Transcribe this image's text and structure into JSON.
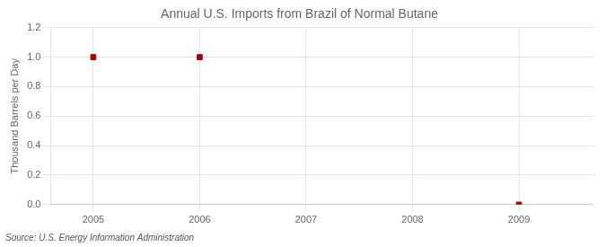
{
  "chart_data": {
    "type": "scatter",
    "title": "Annual U.S. Imports from Brazil of Normal Butane",
    "ylabel": "Thousand Barrels per Day",
    "source": "Source: U.S. Energy Information Administration",
    "x": [
      2005,
      2006,
      2009
    ],
    "values": [
      1.0,
      1.0,
      0.0
    ],
    "color": "#aa0000",
    "marker": "square",
    "xlim": [
      2004.6,
      2009.7
    ],
    "ylim": [
      0.0,
      1.2
    ],
    "xticks": [
      2005,
      2006,
      2007,
      2008,
      2009
    ],
    "yticks": [
      {
        "value": 0,
        "label": "0.0"
      },
      0.2,
      0.4,
      0.6,
      0.8,
      {
        "value": 1,
        "label": "1.0"
      },
      1.2
    ],
    "grid": true
  }
}
